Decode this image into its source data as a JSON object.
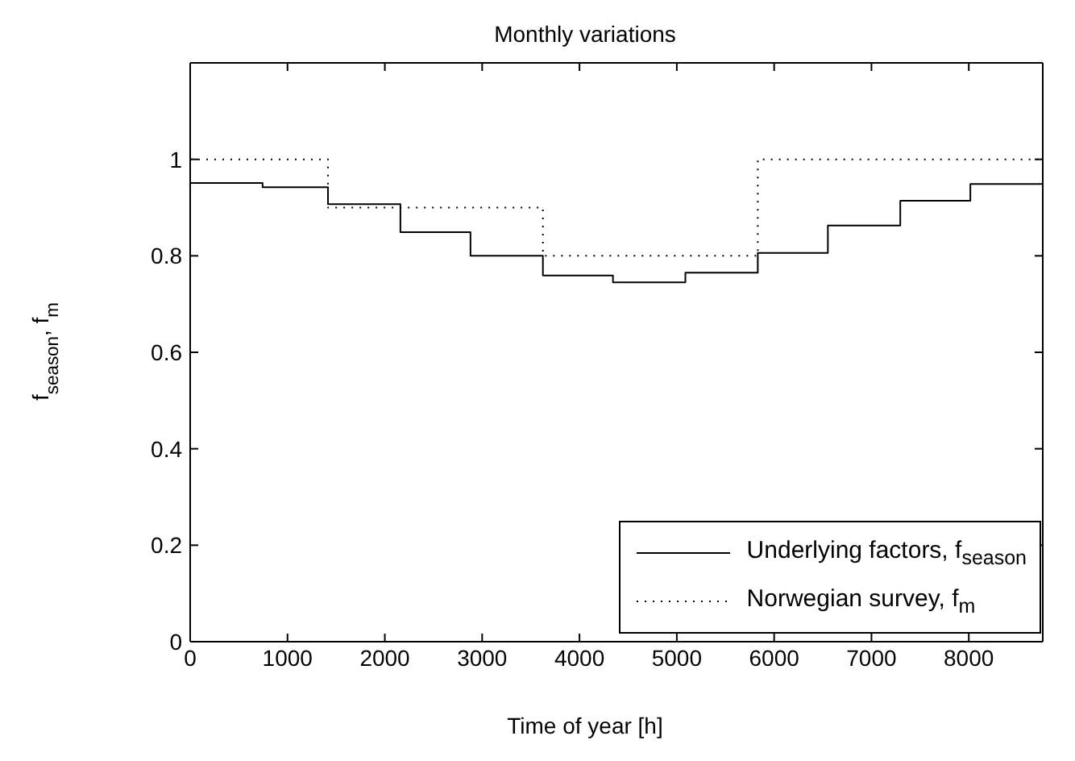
{
  "chart_data": {
    "type": "step",
    "title": "Monthly variations",
    "xlabel": "Time of year [h]",
    "ylabel": "f$_{season}$, f$_{m}$",
    "x": [
      0,
      744,
      1416,
      2160,
      2880,
      3624,
      4344,
      5088,
      5832,
      6552,
      7296,
      8016,
      8760
    ],
    "series": [
      {
        "name": "Underlying factors, f$_{season}$",
        "color": "#000000",
        "line_style": "solid",
        "values": [
          0.951,
          0.942,
          0.907,
          0.849,
          0.8,
          0.759,
          0.745,
          0.765,
          0.806,
          0.863,
          0.914,
          0.949,
          0.949
        ]
      },
      {
        "name": "Norwegian survey, f$_{m}$",
        "color": "#000000",
        "line_style": "dotted",
        "values": [
          1,
          1,
          0.9,
          0.9,
          0.9,
          0.8,
          0.8,
          0.8,
          1,
          1,
          1,
          1,
          1
        ]
      }
    ],
    "xlim": [
      0,
      8760
    ],
    "xticks": [
      0,
      1000,
      2000,
      3000,
      4000,
      5000,
      6000,
      7000,
      8000
    ],
    "ylim": [
      0,
      1.2
    ],
    "yticks": [
      0,
      0.2,
      0.4,
      0.6,
      0.8,
      1
    ],
    "grid": false,
    "legend": "bottom right",
    "marker": "none"
  }
}
